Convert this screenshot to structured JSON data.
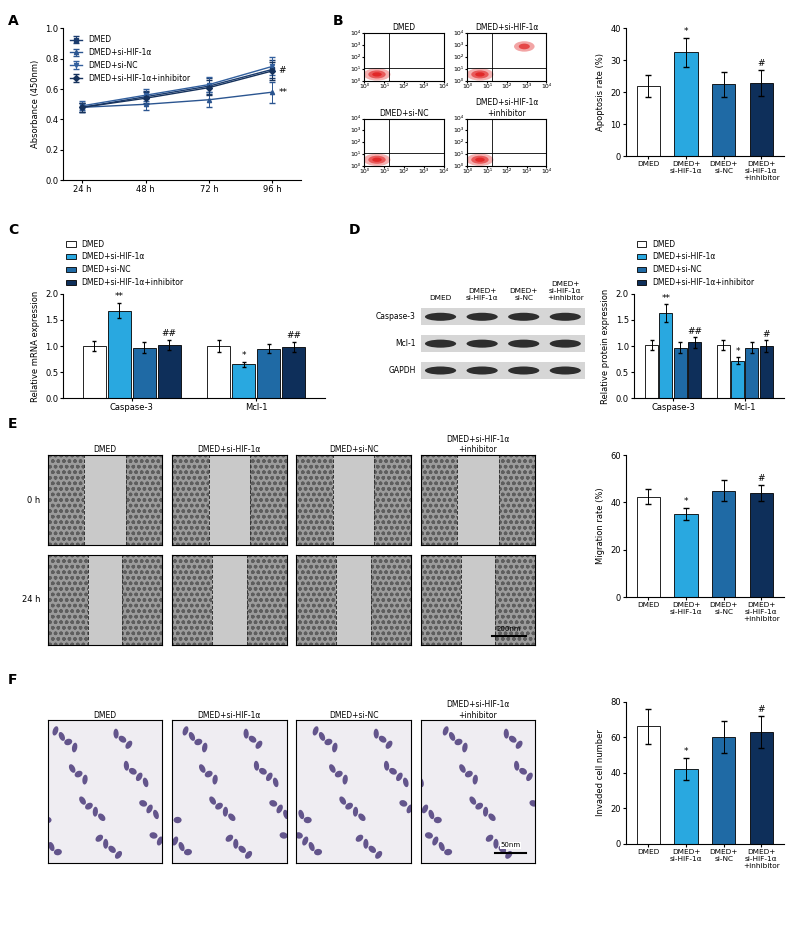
{
  "chart_data": [
    {
      "panel": "A",
      "type": "line",
      "categories": [
        "24 h",
        "48 h",
        "72 h",
        "96 h"
      ],
      "ylabel": "Absorbance (450nm)",
      "ylim": [
        0.0,
        1.0
      ],
      "yticks": [
        0.0,
        0.2,
        0.4,
        0.6,
        0.8,
        1.0
      ],
      "legend": "upper left",
      "series": [
        {
          "name": "DMED",
          "color": "#1b3c6e",
          "marker": "square",
          "values": [
            0.48,
            0.55,
            0.62,
            0.73
          ],
          "errors": [
            0.03,
            0.04,
            0.05,
            0.06
          ],
          "annotations": [
            null,
            null,
            null,
            null
          ]
        },
        {
          "name": "DMED+si-HIF-1α",
          "color": "#2b5590",
          "marker": "triangle_up",
          "values": [
            0.48,
            0.5,
            0.53,
            0.58
          ],
          "errors": [
            0.03,
            0.04,
            0.05,
            0.07
          ],
          "annotations": [
            null,
            null,
            null,
            "**"
          ]
        },
        {
          "name": "DMED+si-NC",
          "color": "#33609e",
          "marker": "triangle_down",
          "values": [
            0.49,
            0.56,
            0.63,
            0.75
          ],
          "errors": [
            0.03,
            0.04,
            0.05,
            0.06
          ],
          "annotations": [
            null,
            null,
            null,
            null
          ]
        },
        {
          "name": "DMED+si-HIF-1α+inhibitor",
          "color": "#16325c",
          "marker": "diamond",
          "values": [
            0.48,
            0.54,
            0.61,
            0.72
          ],
          "errors": [
            0.03,
            0.04,
            0.05,
            0.06
          ],
          "annotations": [
            null,
            null,
            null,
            "#"
          ]
        }
      ]
    },
    {
      "panel": "B",
      "type": "bar",
      "categories": [
        "DMED",
        "DMED+si-HIF-1α",
        "DMED+si-NC",
        "DMED+si-HIF-1α+inhibitor"
      ],
      "ylabel": "Apoptosis rate (%)",
      "ylim": [
        0,
        40
      ],
      "yticks": [
        0,
        10,
        20,
        30,
        40
      ],
      "colors": [
        "#ffffff",
        "#29a8e0",
        "#1f6aa5",
        "#0e2f5a"
      ],
      "values": [
        22,
        32.5,
        22.5,
        23
      ],
      "errors": [
        3.5,
        4.5,
        4,
        4
      ],
      "annotations": [
        null,
        "*",
        null,
        "#"
      ]
    },
    {
      "panel": "C",
      "type": "bar",
      "categories": [
        "Caspase-3",
        "Mcl-1"
      ],
      "ylabel": "Relative mRNA expression",
      "ylim": [
        0.0,
        2.0
      ],
      "yticks": [
        0.0,
        0.5,
        1.0,
        1.5,
        2.0
      ],
      "legend": "upper left",
      "series": [
        {
          "name": "DMED",
          "color": "#ffffff",
          "values": [
            1.0,
            1.0
          ],
          "errors": [
            0.1,
            0.12
          ],
          "annotations": [
            null,
            null
          ]
        },
        {
          "name": "DMED+si-HIF-1α",
          "color": "#29a8e0",
          "values": [
            1.68,
            0.65
          ],
          "errors": [
            0.15,
            0.05
          ],
          "annotations": [
            "**",
            "*"
          ]
        },
        {
          "name": "DMED+si-NC",
          "color": "#1f6aa5",
          "values": [
            0.97,
            0.95
          ],
          "errors": [
            0.1,
            0.09
          ],
          "annotations": [
            null,
            null
          ]
        },
        {
          "name": "DMED+si-HIF-1α+inhibitor",
          "color": "#0e2f5a",
          "values": [
            1.02,
            0.98
          ],
          "errors": [
            0.1,
            0.1
          ],
          "annotations": [
            "##",
            "##"
          ]
        }
      ]
    },
    {
      "panel": "D",
      "type": "bar",
      "categories": [
        "Caspase-3",
        "Mcl-1"
      ],
      "ylabel": "Relative protein expression",
      "ylim": [
        0.0,
        2.0
      ],
      "yticks": [
        0.0,
        0.5,
        1.0,
        1.5,
        2.0
      ],
      "legend": "upper left",
      "series": [
        {
          "name": "DMED",
          "color": "#ffffff",
          "values": [
            1.02,
            1.02
          ],
          "errors": [
            0.1,
            0.1
          ],
          "annotations": [
            null,
            null
          ]
        },
        {
          "name": "DMED+si-HIF-1α",
          "color": "#29a8e0",
          "values": [
            1.63,
            0.72
          ],
          "errors": [
            0.17,
            0.06
          ],
          "annotations": [
            "**",
            "*"
          ]
        },
        {
          "name": "DMED+si-NC",
          "color": "#1f6aa5",
          "values": [
            0.97,
            0.97
          ],
          "errors": [
            0.1,
            0.1
          ],
          "annotations": [
            null,
            null
          ]
        },
        {
          "name": "DMED+si-HIF-1α+inhibitor",
          "color": "#0e2f5a",
          "values": [
            1.07,
            1.0
          ],
          "errors": [
            0.1,
            0.11
          ],
          "annotations": [
            "##",
            "#"
          ]
        }
      ]
    },
    {
      "panel": "E",
      "type": "bar",
      "categories": [
        "DMED",
        "DMED+si-HIF-1α",
        "DMED+si-NC",
        "DMED+si-HIF-1α+inhibitor"
      ],
      "ylabel": "Migration rate (%)",
      "ylim": [
        0,
        60
      ],
      "yticks": [
        0,
        20,
        40,
        60
      ],
      "colors": [
        "#ffffff",
        "#29a8e0",
        "#1f6aa5",
        "#0e2f5a"
      ],
      "values": [
        42.5,
        35,
        45,
        44
      ],
      "errors": [
        3,
        2.5,
        4.5,
        3.5
      ],
      "annotations": [
        null,
        "*",
        null,
        "#"
      ]
    },
    {
      "panel": "F",
      "type": "bar",
      "categories": [
        "DMED",
        "DMED+si-HIF-1α",
        "DMED+si-NC",
        "DMED+si-HIF-1α+inhibitor"
      ],
      "ylabel": "Invaded cell number",
      "ylim": [
        0,
        80
      ],
      "yticks": [
        0,
        20,
        40,
        60,
        80
      ],
      "colors": [
        "#ffffff",
        "#29a8e0",
        "#1f6aa5",
        "#0e2f5a"
      ],
      "values": [
        66,
        42,
        60,
        63
      ],
      "errors": [
        10,
        6,
        9,
        9
      ],
      "annotations": [
        null,
        "*",
        null,
        "#"
      ]
    }
  ],
  "images": {
    "flow": {
      "titles": [
        "DMED",
        "DMED+si-HIF-1α",
        "DMED+si-NC",
        "DMED+si-HIF-1α+inhibitor"
      ],
      "lim": [
        1,
        10000
      ],
      "ticks": [
        {
          "value": 1,
          "label": "10⁰"
        },
        {
          "value": 10,
          "label": "10¹"
        },
        {
          "value": 100,
          "label": "10²"
        },
        {
          "value": 1000,
          "label": "10³"
        },
        {
          "value": 10000,
          "label": "10⁴"
        }
      ]
    },
    "blot": {
      "columns": [
        "DMED",
        "DMED+si-HIF-1α",
        "DMED+si-NC",
        "DMED+si-HIF-1α+inhibitor"
      ],
      "rows": [
        "Caspase-3",
        "Mcl-1",
        "GAPDH"
      ]
    },
    "wound": {
      "columns": [
        "DMED",
        "DMED+si-HIF-1α",
        "DMED+si-NC",
        "DMED+si-HIF-1α+inhibitor"
      ],
      "rows": [
        "0 h",
        "24 h"
      ],
      "scale_bar": "200nm"
    },
    "transwell": {
      "columns": [
        "DMED",
        "DMED+si-HIF-1α",
        "DMED+si-NC",
        "DMED+si-HIF-1α+inhibitor"
      ],
      "scale_bar": "50nm"
    }
  }
}
